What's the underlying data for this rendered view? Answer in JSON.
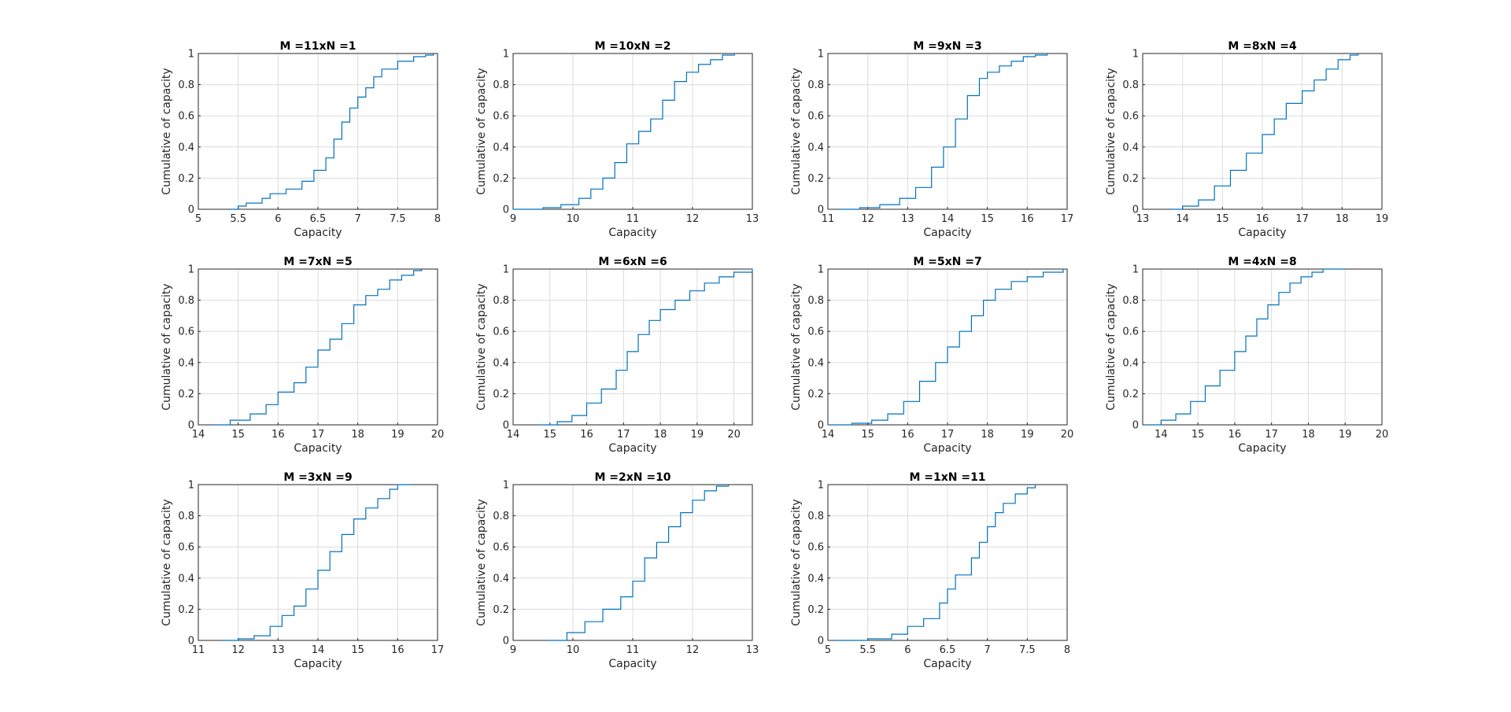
{
  "colors": {
    "line": "#0072BD",
    "grid": "#dcdcdc",
    "axis": "#262626",
    "background": "#ffffff"
  },
  "chart_data": [
    {
      "type": "line",
      "title": "M =11xN =1",
      "xlabel": "Capacity",
      "ylabel": "Cumulative of capacity",
      "xlim": [
        5,
        8
      ],
      "ylim": [
        0,
        1
      ],
      "xticks": [
        "5",
        "5.5",
        "6",
        "6.5",
        "7",
        "7.5",
        "8"
      ],
      "yticks": [
        "0",
        "0.2",
        "0.4",
        "0.6",
        "0.8",
        "1"
      ],
      "grid": true,
      "series": [
        {
          "x": [
            5.4,
            5.5,
            5.6,
            5.8,
            5.9,
            6.1,
            6.3,
            6.45,
            6.6,
            6.7,
            6.8,
            6.9,
            7.0,
            7.1,
            7.2,
            7.3,
            7.5,
            7.7,
            7.85,
            7.95
          ],
          "y": [
            0,
            0.02,
            0.04,
            0.07,
            0.1,
            0.13,
            0.18,
            0.25,
            0.33,
            0.45,
            0.56,
            0.65,
            0.72,
            0.78,
            0.85,
            0.9,
            0.95,
            0.98,
            0.99,
            1
          ]
        }
      ]
    },
    {
      "type": "line",
      "title": "M =10xN =2",
      "xlabel": "Capacity",
      "ylabel": "Cumulative of capacity",
      "xlim": [
        9,
        13
      ],
      "ylim": [
        0,
        1
      ],
      "xticks": [
        "9",
        "10",
        "11",
        "12",
        "13"
      ],
      "yticks": [
        "0",
        "0.2",
        "0.4",
        "0.6",
        "0.8",
        "1"
      ],
      "grid": true,
      "series": [
        {
          "x": [
            9.0,
            9.5,
            9.8,
            10.1,
            10.3,
            10.5,
            10.7,
            10.9,
            11.1,
            11.3,
            11.5,
            11.7,
            11.9,
            12.1,
            12.3,
            12.5,
            12.7
          ],
          "y": [
            0,
            0.01,
            0.03,
            0.07,
            0.13,
            0.2,
            0.3,
            0.42,
            0.5,
            0.58,
            0.7,
            0.82,
            0.88,
            0.93,
            0.96,
            0.99,
            1
          ]
        }
      ]
    },
    {
      "type": "line",
      "title": "M =9xN =3",
      "xlabel": "Capacity",
      "ylabel": "Cumulative of capacity",
      "xlim": [
        11,
        17
      ],
      "ylim": [
        0,
        1
      ],
      "xticks": [
        "11",
        "12",
        "13",
        "14",
        "15",
        "16",
        "17"
      ],
      "yticks": [
        "0",
        "0.2",
        "0.4",
        "0.6",
        "0.8",
        "1"
      ],
      "grid": true,
      "series": [
        {
          "x": [
            11.3,
            11.8,
            12.3,
            12.8,
            13.2,
            13.6,
            13.9,
            14.2,
            14.5,
            14.8,
            15.0,
            15.3,
            15.6,
            15.9,
            16.2,
            16.5
          ],
          "y": [
            0,
            0.01,
            0.03,
            0.07,
            0.14,
            0.27,
            0.4,
            0.58,
            0.73,
            0.84,
            0.88,
            0.92,
            0.95,
            0.98,
            0.99,
            1
          ]
        }
      ]
    },
    {
      "type": "line",
      "title": "M =8xN =4",
      "xlabel": "Capacity",
      "ylabel": "Cumulative of capacity",
      "xlim": [
        13,
        19
      ],
      "ylim": [
        0,
        1
      ],
      "xticks": [
        "13",
        "14",
        "15",
        "16",
        "17",
        "18",
        "19"
      ],
      "yticks": [
        "0",
        "0.2",
        "0.4",
        "0.6",
        "0.8",
        "1"
      ],
      "grid": true,
      "series": [
        {
          "x": [
            13.7,
            14.0,
            14.4,
            14.8,
            15.2,
            15.6,
            16.0,
            16.3,
            16.6,
            17.0,
            17.3,
            17.6,
            17.9,
            18.2,
            18.4
          ],
          "y": [
            0,
            0.02,
            0.06,
            0.15,
            0.25,
            0.36,
            0.48,
            0.58,
            0.68,
            0.76,
            0.83,
            0.9,
            0.96,
            0.99,
            1
          ]
        }
      ]
    },
    {
      "type": "line",
      "title": "M =7xN =5",
      "xlabel": "Capacity",
      "ylabel": "Cumulative of capacity",
      "xlim": [
        14,
        20
      ],
      "ylim": [
        0,
        1
      ],
      "xticks": [
        "14",
        "15",
        "16",
        "17",
        "18",
        "19",
        "20"
      ],
      "yticks": [
        "0",
        "0.2",
        "0.4",
        "0.6",
        "0.8",
        "1"
      ],
      "grid": true,
      "series": [
        {
          "x": [
            14.4,
            14.8,
            15.3,
            15.7,
            16.0,
            16.4,
            16.7,
            17.0,
            17.3,
            17.6,
            17.9,
            18.2,
            18.5,
            18.8,
            19.1,
            19.4,
            19.6
          ],
          "y": [
            0,
            0.03,
            0.07,
            0.13,
            0.21,
            0.27,
            0.37,
            0.48,
            0.55,
            0.65,
            0.77,
            0.83,
            0.87,
            0.93,
            0.96,
            0.99,
            1
          ]
        }
      ]
    },
    {
      "type": "line",
      "title": "M =6xN =6",
      "xlabel": "Capacity",
      "ylabel": "Cumulative of capacity",
      "xlim": [
        14,
        20.5
      ],
      "ylim": [
        0,
        1
      ],
      "xticks": [
        "14",
        "15",
        "16",
        "17",
        "18",
        "19",
        "20"
      ],
      "yticks": [
        "0",
        "0.2",
        "0.4",
        "0.6",
        "0.8",
        "1"
      ],
      "grid": true,
      "series": [
        {
          "x": [
            14.7,
            15.2,
            15.6,
            16.0,
            16.4,
            16.8,
            17.1,
            17.4,
            17.7,
            18.0,
            18.4,
            18.8,
            19.2,
            19.6,
            20.0,
            20.5
          ],
          "y": [
            0,
            0.02,
            0.06,
            0.14,
            0.23,
            0.35,
            0.47,
            0.58,
            0.67,
            0.74,
            0.8,
            0.86,
            0.91,
            0.95,
            0.98,
            1
          ]
        }
      ]
    },
    {
      "type": "line",
      "title": "M =5xN =7",
      "xlabel": "Capacity",
      "ylabel": "Cumulative of capacity",
      "xlim": [
        14,
        20
      ],
      "ylim": [
        0,
        1
      ],
      "xticks": [
        "14",
        "15",
        "16",
        "17",
        "18",
        "19",
        "20"
      ],
      "yticks": [
        "0",
        "0.2",
        "0.4",
        "0.6",
        "0.8",
        "1"
      ],
      "grid": true,
      "series": [
        {
          "x": [
            14.0,
            14.6,
            15.1,
            15.5,
            15.9,
            16.3,
            16.7,
            17.0,
            17.3,
            17.6,
            17.9,
            18.2,
            18.6,
            19.0,
            19.4,
            19.9
          ],
          "y": [
            0,
            0.01,
            0.03,
            0.07,
            0.15,
            0.28,
            0.4,
            0.5,
            0.6,
            0.7,
            0.8,
            0.87,
            0.92,
            0.95,
            0.98,
            1
          ]
        }
      ]
    },
    {
      "type": "line",
      "title": "M =4xN =8",
      "xlabel": "Capacity",
      "ylabel": "Cumulative of capacity",
      "xlim": [
        13.5,
        20
      ],
      "ylim": [
        0,
        1
      ],
      "xticks": [
        "14",
        "15",
        "16",
        "17",
        "18",
        "19",
        "20"
      ],
      "yticks": [
        "0",
        "0.2",
        "0.4",
        "0.6",
        "0.8",
        "1"
      ],
      "grid": true,
      "series": [
        {
          "x": [
            13.6,
            14.0,
            14.4,
            14.8,
            15.2,
            15.6,
            16.0,
            16.3,
            16.6,
            16.9,
            17.2,
            17.5,
            17.8,
            18.1,
            18.4,
            19.0
          ],
          "y": [
            0,
            0.03,
            0.07,
            0.15,
            0.25,
            0.35,
            0.47,
            0.57,
            0.68,
            0.77,
            0.85,
            0.91,
            0.95,
            0.98,
            1,
            1
          ]
        }
      ]
    },
    {
      "type": "line",
      "title": "M =3xN =9",
      "xlabel": "Capacity",
      "ylabel": "Cumulative of capacity",
      "xlim": [
        11,
        17
      ],
      "ylim": [
        0,
        1
      ],
      "xticks": [
        "11",
        "12",
        "13",
        "14",
        "15",
        "16",
        "17"
      ],
      "yticks": [
        "0",
        "0.2",
        "0.4",
        "0.6",
        "0.8",
        "1"
      ],
      "grid": true,
      "series": [
        {
          "x": [
            11.6,
            12.0,
            12.4,
            12.8,
            13.1,
            13.4,
            13.7,
            14.0,
            14.3,
            14.6,
            14.9,
            15.2,
            15.5,
            15.8,
            16.0,
            16.3
          ],
          "y": [
            0,
            0.01,
            0.03,
            0.09,
            0.16,
            0.22,
            0.33,
            0.45,
            0.57,
            0.68,
            0.78,
            0.85,
            0.91,
            0.97,
            1,
            1
          ]
        }
      ]
    },
    {
      "type": "line",
      "title": "M =2xN =10",
      "xlabel": "Capacity",
      "ylabel": "Cumulative of capacity",
      "xlim": [
        9,
        13
      ],
      "ylim": [
        0,
        1
      ],
      "xticks": [
        "9",
        "10",
        "11",
        "12",
        "13"
      ],
      "yticks": [
        "0",
        "0.2",
        "0.4",
        "0.6",
        "0.8",
        "1"
      ],
      "grid": true,
      "series": [
        {
          "x": [
            9.6,
            9.9,
            10.2,
            10.5,
            10.8,
            11.0,
            11.2,
            11.4,
            11.6,
            11.8,
            12.0,
            12.2,
            12.4,
            12.6
          ],
          "y": [
            0,
            0.05,
            0.12,
            0.2,
            0.28,
            0.38,
            0.53,
            0.63,
            0.73,
            0.82,
            0.9,
            0.96,
            0.99,
            1
          ]
        }
      ]
    },
    {
      "type": "line",
      "title": "M =1xN =11",
      "xlabel": "Capacity",
      "ylabel": "Cumulative of capacity",
      "xlim": [
        5,
        8
      ],
      "ylim": [
        0,
        1
      ],
      "xticks": [
        "5",
        "5.5",
        "6",
        "6.5",
        "7",
        "7.5",
        "8"
      ],
      "yticks": [
        "0",
        "0.2",
        "0.4",
        "0.6",
        "0.8",
        "1"
      ],
      "grid": true,
      "series": [
        {
          "x": [
            5.1,
            5.5,
            5.8,
            6.0,
            6.2,
            6.4,
            6.5,
            6.6,
            6.8,
            6.9,
            7.0,
            7.1,
            7.2,
            7.35,
            7.5,
            7.6
          ],
          "y": [
            0,
            0.01,
            0.04,
            0.09,
            0.14,
            0.24,
            0.33,
            0.42,
            0.53,
            0.63,
            0.73,
            0.82,
            0.88,
            0.94,
            0.98,
            1
          ]
        }
      ]
    }
  ]
}
